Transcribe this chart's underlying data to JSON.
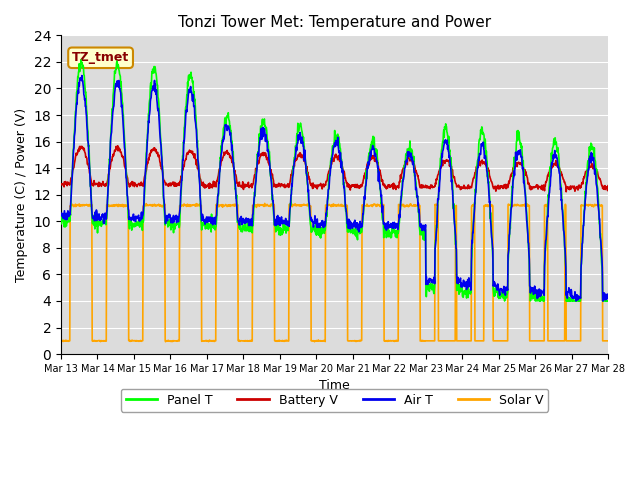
{
  "title": "Tonzi Tower Met: Temperature and Power",
  "xlabel": "Time",
  "ylabel": "Temperature (C) / Power (V)",
  "ylim": [
    0,
    24
  ],
  "yticks": [
    0,
    2,
    4,
    6,
    8,
    10,
    12,
    14,
    16,
    18,
    20,
    22,
    24
  ],
  "annotation_text": "TZ_tmet",
  "legend_entries": [
    "Panel T",
    "Battery V",
    "Air T",
    "Solar V"
  ],
  "legend_colors": [
    "#00FF00",
    "#CC0000",
    "#0000EE",
    "#FFA500"
  ],
  "bg_color": "#DCDCDC",
  "grid_color": "#FFFFFF",
  "line_width": 1.2,
  "n_days": 15,
  "start_day": 13
}
